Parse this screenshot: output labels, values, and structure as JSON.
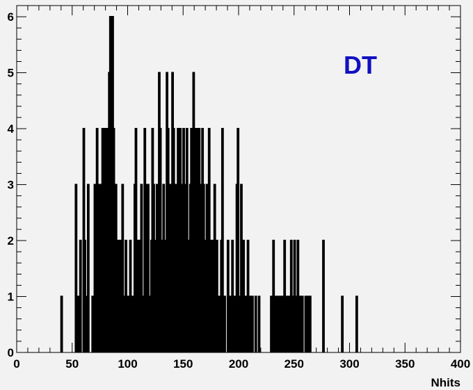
{
  "chart_data": {
    "type": "bar",
    "title": "",
    "xlabel": "Nhits",
    "ylabel": "",
    "xlim": [
      0,
      400
    ],
    "ylim": [
      0,
      6.2
    ],
    "xticks": [
      0,
      50,
      100,
      150,
      200,
      250,
      300,
      350,
      400
    ],
    "yticks": [
      0,
      1,
      2,
      3,
      4,
      5,
      6
    ],
    "grid": false,
    "annotation": {
      "text": "DT",
      "color": "#1010c0"
    },
    "style": {
      "line_color": "#000000",
      "background": "#f2f2f2"
    },
    "bin_width": 1,
    "bins": [
      {
        "x": 40,
        "y": 1
      },
      {
        "x": 53,
        "y": 3
      },
      {
        "x": 55,
        "y": 1
      },
      {
        "x": 57,
        "y": 2
      },
      {
        "x": 60,
        "y": 4
      },
      {
        "x": 61,
        "y": 2
      },
      {
        "x": 63,
        "y": 1
      },
      {
        "x": 64,
        "y": 3
      },
      {
        "x": 68,
        "y": 1
      },
      {
        "x": 70,
        "y": 3
      },
      {
        "x": 71,
        "y": 1
      },
      {
        "x": 72,
        "y": 4
      },
      {
        "x": 73,
        "y": 3
      },
      {
        "x": 74,
        "y": 1
      },
      {
        "x": 75,
        "y": 3
      },
      {
        "x": 77,
        "y": 4
      },
      {
        "x": 78,
        "y": 3
      },
      {
        "x": 79,
        "y": 4
      },
      {
        "x": 80,
        "y": 3
      },
      {
        "x": 81,
        "y": 4
      },
      {
        "x": 82,
        "y": 3
      },
      {
        "x": 83,
        "y": 5
      },
      {
        "x": 84,
        "y": 6
      },
      {
        "x": 85,
        "y": 5
      },
      {
        "x": 86,
        "y": 6
      },
      {
        "x": 87,
        "y": 4
      },
      {
        "x": 88,
        "y": 1
      },
      {
        "x": 89,
        "y": 3
      },
      {
        "x": 91,
        "y": 2
      },
      {
        "x": 92,
        "y": 1
      },
      {
        "x": 93,
        "y": 2
      },
      {
        "x": 95,
        "y": 3
      },
      {
        "x": 96,
        "y": 1
      },
      {
        "x": 98,
        "y": 2
      },
      {
        "x": 100,
        "y": 1
      },
      {
        "x": 102,
        "y": 2
      },
      {
        "x": 104,
        "y": 1
      },
      {
        "x": 106,
        "y": 3
      },
      {
        "x": 107,
        "y": 4
      },
      {
        "x": 108,
        "y": 2
      },
      {
        "x": 109,
        "y": 1
      },
      {
        "x": 110,
        "y": 2
      },
      {
        "x": 112,
        "y": 3
      },
      {
        "x": 113,
        "y": 1
      },
      {
        "x": 115,
        "y": 4
      },
      {
        "x": 116,
        "y": 3
      },
      {
        "x": 117,
        "y": 1
      },
      {
        "x": 118,
        "y": 3
      },
      {
        "x": 120,
        "y": 1
      },
      {
        "x": 121,
        "y": 2
      },
      {
        "x": 122,
        "y": 4
      },
      {
        "x": 123,
        "y": 3
      },
      {
        "x": 124,
        "y": 2
      },
      {
        "x": 126,
        "y": 3
      },
      {
        "x": 128,
        "y": 5
      },
      {
        "x": 129,
        "y": 4
      },
      {
        "x": 130,
        "y": 1
      },
      {
        "x": 131,
        "y": 2
      },
      {
        "x": 132,
        "y": 3
      },
      {
        "x": 133,
        "y": 1
      },
      {
        "x": 134,
        "y": 2
      },
      {
        "x": 135,
        "y": 5
      },
      {
        "x": 136,
        "y": 4
      },
      {
        "x": 137,
        "y": 1
      },
      {
        "x": 138,
        "y": 3
      },
      {
        "x": 139,
        "y": 2
      },
      {
        "x": 140,
        "y": 5
      },
      {
        "x": 141,
        "y": 4
      },
      {
        "x": 142,
        "y": 2
      },
      {
        "x": 143,
        "y": 3
      },
      {
        "x": 145,
        "y": 4
      },
      {
        "x": 146,
        "y": 2
      },
      {
        "x": 147,
        "y": 4
      },
      {
        "x": 148,
        "y": 1
      },
      {
        "x": 149,
        "y": 3
      },
      {
        "x": 150,
        "y": 4
      },
      {
        "x": 151,
        "y": 2
      },
      {
        "x": 152,
        "y": 3
      },
      {
        "x": 153,
        "y": 4
      },
      {
        "x": 155,
        "y": 2
      },
      {
        "x": 156,
        "y": 3
      },
      {
        "x": 157,
        "y": 4
      },
      {
        "x": 158,
        "y": 3
      },
      {
        "x": 159,
        "y": 5
      },
      {
        "x": 160,
        "y": 4
      },
      {
        "x": 161,
        "y": 3
      },
      {
        "x": 162,
        "y": 4
      },
      {
        "x": 163,
        "y": 2
      },
      {
        "x": 164,
        "y": 4
      },
      {
        "x": 165,
        "y": 3
      },
      {
        "x": 166,
        "y": 2
      },
      {
        "x": 167,
        "y": 4
      },
      {
        "x": 168,
        "y": 3
      },
      {
        "x": 169,
        "y": 2
      },
      {
        "x": 170,
        "y": 1
      },
      {
        "x": 171,
        "y": 3
      },
      {
        "x": 172,
        "y": 0
      },
      {
        "x": 173,
        "y": 4
      },
      {
        "x": 174,
        "y": 2
      },
      {
        "x": 175,
        "y": 1
      },
      {
        "x": 176,
        "y": 2
      },
      {
        "x": 177,
        "y": 0
      },
      {
        "x": 178,
        "y": 3
      },
      {
        "x": 180,
        "y": 2
      },
      {
        "x": 182,
        "y": 1
      },
      {
        "x": 184,
        "y": 2
      },
      {
        "x": 185,
        "y": 4
      },
      {
        "x": 187,
        "y": 1
      },
      {
        "x": 190,
        "y": 2
      },
      {
        "x": 192,
        "y": 1
      },
      {
        "x": 194,
        "y": 2
      },
      {
        "x": 196,
        "y": 1
      },
      {
        "x": 198,
        "y": 3
      },
      {
        "x": 199,
        "y": 4
      },
      {
        "x": 200,
        "y": 1
      },
      {
        "x": 202,
        "y": 3
      },
      {
        "x": 204,
        "y": 2
      },
      {
        "x": 206,
        "y": 1
      },
      {
        "x": 208,
        "y": 2
      },
      {
        "x": 210,
        "y": 1
      },
      {
        "x": 212,
        "y": 1
      },
      {
        "x": 215,
        "y": 1
      },
      {
        "x": 218,
        "y": 1
      },
      {
        "x": 229,
        "y": 1
      },
      {
        "x": 231,
        "y": 2
      },
      {
        "x": 233,
        "y": 1
      },
      {
        "x": 235,
        "y": 1
      },
      {
        "x": 237,
        "y": 1
      },
      {
        "x": 239,
        "y": 1
      },
      {
        "x": 241,
        "y": 2
      },
      {
        "x": 243,
        "y": 1
      },
      {
        "x": 245,
        "y": 1
      },
      {
        "x": 247,
        "y": 2
      },
      {
        "x": 248,
        "y": 1
      },
      {
        "x": 250,
        "y": 2
      },
      {
        "x": 252,
        "y": 1
      },
      {
        "x": 253,
        "y": 2
      },
      {
        "x": 255,
        "y": 1
      },
      {
        "x": 257,
        "y": 1
      },
      {
        "x": 260,
        "y": 1
      },
      {
        "x": 262,
        "y": 1
      },
      {
        "x": 264,
        "y": 1
      },
      {
        "x": 276,
        "y": 2
      },
      {
        "x": 293,
        "y": 1
      },
      {
        "x": 306,
        "y": 1
      }
    ]
  }
}
